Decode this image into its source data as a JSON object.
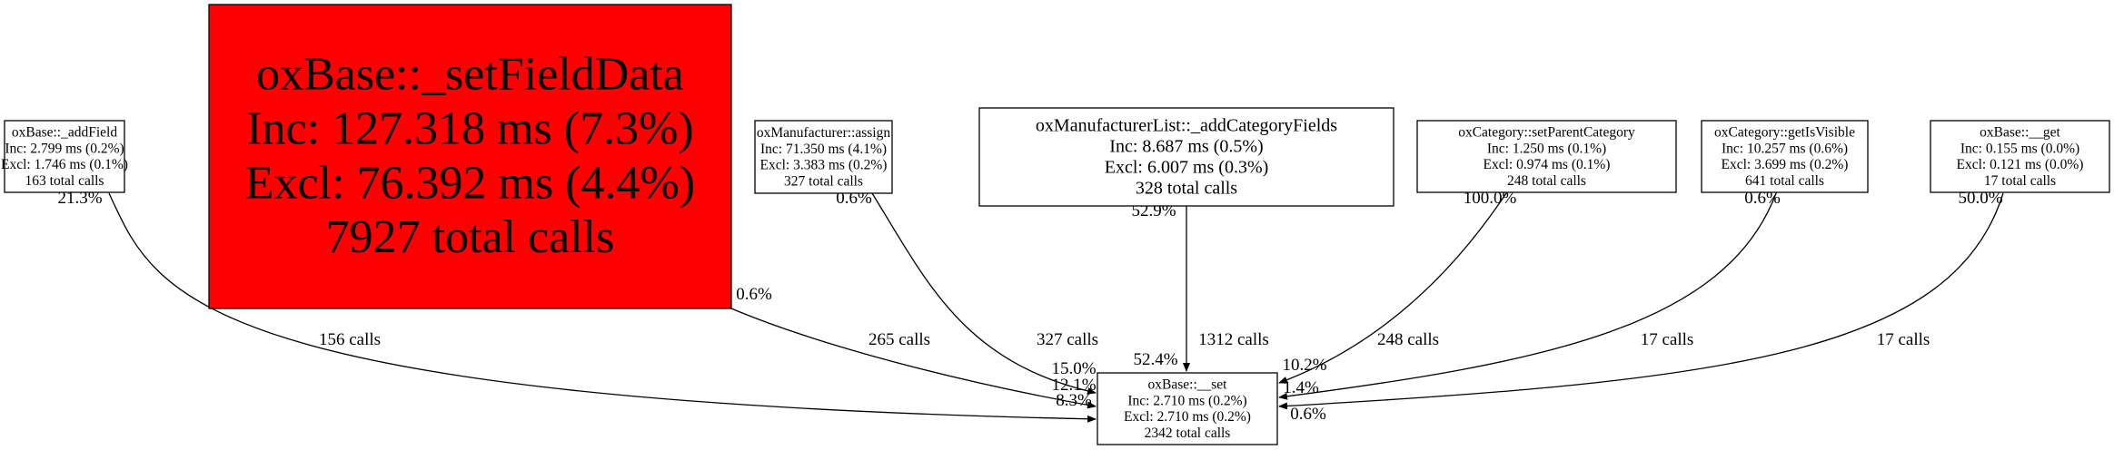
{
  "graph": {
    "highlight_color": "#ff0000",
    "nodes": [
      {
        "id": "addField",
        "lines": [
          "oxBase::_addField",
          "Inc: 2.799 ms (0.2%)",
          "Excl: 1.746 ms (0.1%)",
          "163 total calls"
        ]
      },
      {
        "id": "setFieldData",
        "highlighted": true,
        "lines": [
          "oxBase::_setFieldData",
          "Inc: 127.318 ms (7.3%)",
          "Excl: 76.392 ms (4.4%)",
          "7927 total calls"
        ]
      },
      {
        "id": "assign",
        "lines": [
          "oxManufacturer::assign",
          "Inc: 71.350 ms (4.1%)",
          "Excl: 3.383 ms (0.2%)",
          "327 total calls"
        ]
      },
      {
        "id": "addCategoryFields",
        "lines": [
          "oxManufacturerList::_addCategoryFields",
          "Inc: 8.687 ms (0.5%)",
          "Excl: 6.007 ms (0.3%)",
          "328 total calls"
        ]
      },
      {
        "id": "setParentCategory",
        "lines": [
          "oxCategory::setParentCategory",
          "Inc: 1.250 ms (0.1%)",
          "Excl: 0.974 ms (0.1%)",
          "248 total calls"
        ]
      },
      {
        "id": "getIsVisible",
        "lines": [
          "oxCategory::getIsVisible",
          "Inc: 10.257 ms (0.6%)",
          "Excl: 3.699 ms (0.2%)",
          "641 total calls"
        ]
      },
      {
        "id": "get",
        "lines": [
          "oxBase::__get",
          "Inc: 0.155 ms (0.0%)",
          "Excl: 0.121 ms (0.0%)",
          "17 total calls"
        ]
      },
      {
        "id": "set",
        "lines": [
          "oxBase::__set",
          "Inc: 2.710 ms (0.2%)",
          "Excl: 2.710 ms (0.2%)",
          "2342 total calls"
        ]
      }
    ],
    "edges": [
      {
        "from": "addField",
        "to": "set",
        "label": "156 calls",
        "tail": "21.3%",
        "head": "8.3%"
      },
      {
        "from": "setFieldData",
        "to": "set",
        "label": "265 calls",
        "tail": "0.6%",
        "head": "12.1%"
      },
      {
        "from": "assign",
        "to": "set",
        "label": "327 calls",
        "tail": "0.6%",
        "head": "15.0%"
      },
      {
        "from": "addCategoryFields",
        "to": "set",
        "label": "1312 calls",
        "tail": "52.9%",
        "head": "52.4%"
      },
      {
        "from": "setParentCategory",
        "to": "set",
        "label": "248 calls",
        "tail": "100.0%",
        "head": "10.2%"
      },
      {
        "from": "getIsVisible",
        "to": "set",
        "label": "17 calls",
        "tail": "0.6%",
        "head": "1.4%"
      },
      {
        "from": "get",
        "to": "set",
        "label": "17 calls",
        "tail": "50.0%",
        "head": "0.6%"
      }
    ]
  }
}
